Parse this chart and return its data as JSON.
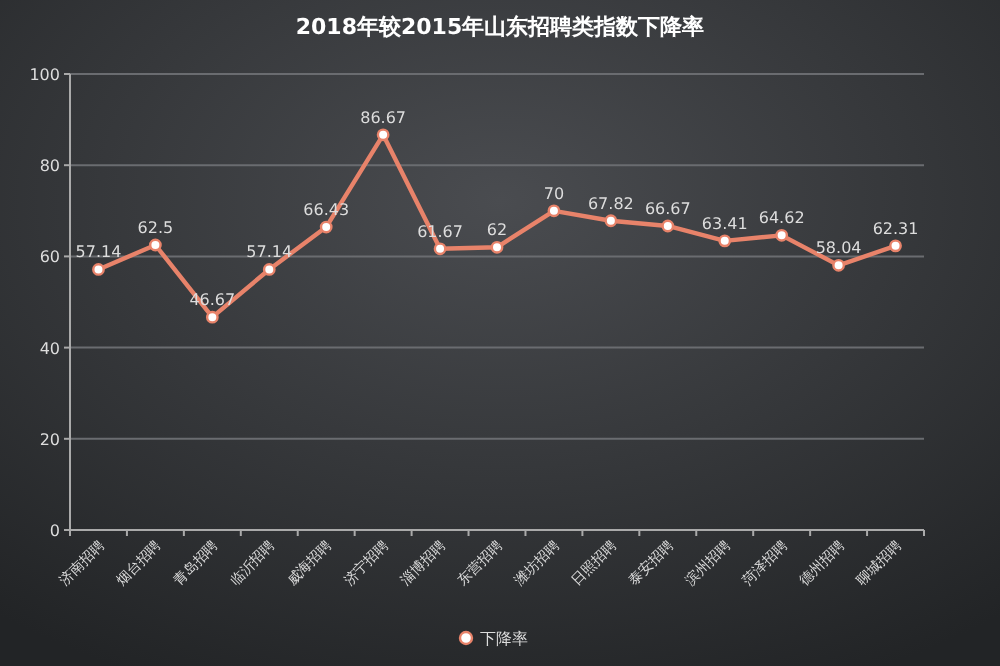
{
  "chart_data": {
    "type": "line",
    "title": "2018年较2015年山东招聘类指数下降率",
    "categories": [
      "济南招聘",
      "烟台招聘",
      "青岛招聘",
      "临沂招聘",
      "威海招聘",
      "济宁招聘",
      "淄博招聘",
      "东营招聘",
      "潍坊招聘",
      "日照招聘",
      "泰安招聘",
      "滨州招聘",
      "菏泽招聘",
      "德州招聘",
      "聊城招聘"
    ],
    "series": [
      {
        "name": "下降率",
        "color": "#e8836a",
        "values": [
          57.14,
          62.5,
          46.67,
          57.14,
          66.43,
          86.67,
          61.67,
          62,
          70,
          67.82,
          66.67,
          63.41,
          64.62,
          58.04,
          62.31
        ]
      }
    ],
    "ylim": [
      0,
      100
    ],
    "yticks": [
      0,
      20,
      40,
      60,
      80,
      100
    ],
    "grid": "y",
    "legend": "bottom",
    "marker": "circle",
    "data_labels": true
  }
}
